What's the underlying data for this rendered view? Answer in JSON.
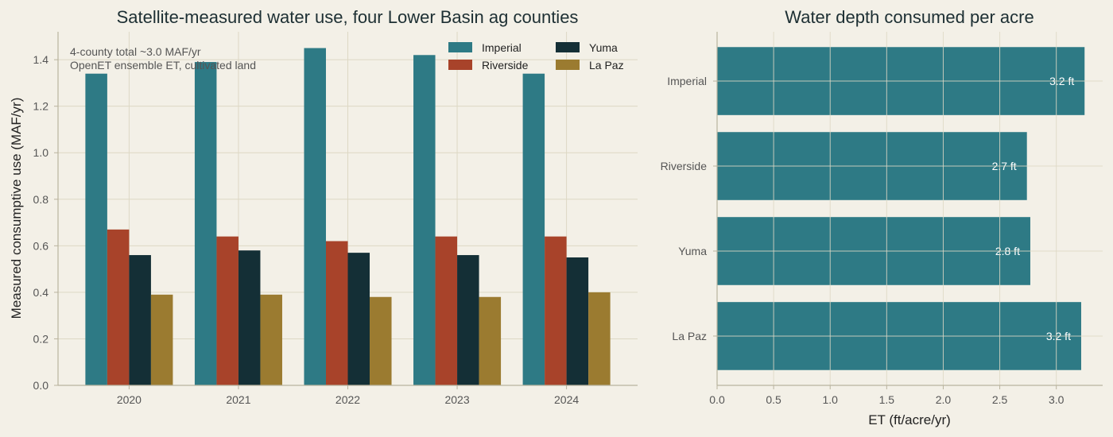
{
  "colors": {
    "background": "#f3f0e7",
    "grid": "#ddd8c4",
    "axis": "#b9b39e",
    "text": "#555555",
    "title": "#1d2f33",
    "Imperial": "#2e7a85",
    "Riverside": "#a8432a",
    "Yuma": "#142f36",
    "La Paz": "#9b7b30",
    "bar_label": "#ffffff"
  },
  "chart_data": [
    {
      "type": "bar",
      "title": "Satellite-measured water use, four Lower Basin ag counties",
      "xlabel": "",
      "ylabel": "Measured consumptive use (MAF/yr)",
      "categories": [
        "2020",
        "2021",
        "2022",
        "2023",
        "2024"
      ],
      "series": [
        {
          "name": "Imperial",
          "values": [
            1.34,
            1.39,
            1.45,
            1.42,
            1.34
          ]
        },
        {
          "name": "Riverside",
          "values": [
            0.67,
            0.64,
            0.62,
            0.64,
            0.64
          ]
        },
        {
          "name": "Yuma",
          "values": [
            0.56,
            0.58,
            0.57,
            0.56,
            0.55
          ]
        },
        {
          "name": "La Paz",
          "values": [
            0.39,
            0.39,
            0.38,
            0.38,
            0.4
          ]
        }
      ],
      "ylim": [
        0,
        1.52
      ],
      "yticks": [
        "0.0",
        "0.2",
        "0.4",
        "0.6",
        "0.8",
        "1.0",
        "1.2",
        "1.4"
      ],
      "annotation": [
        "4-county total ~3.0 MAF/yr",
        "OpenET ensemble ET, cultivated land"
      ],
      "legend_placement": "top-right",
      "legend_columns": 2,
      "grid": true
    },
    {
      "type": "bar",
      "orientation": "horizontal",
      "title": "Water depth consumed per acre",
      "xlabel": "ET (ft/acre/yr)",
      "ylabel": "",
      "categories": [
        "Imperial",
        "Riverside",
        "Yuma",
        "La Paz"
      ],
      "values": [
        3.25,
        2.74,
        2.77,
        3.22
      ],
      "data_labels": [
        "3.2 ft",
        "2.7 ft",
        "2.8 ft",
        "3.2 ft"
      ],
      "xlim": [
        0,
        3.41
      ],
      "xticks": [
        "0.0",
        "0.5",
        "1.0",
        "1.5",
        "2.0",
        "2.5",
        "3.0"
      ],
      "grid": true
    }
  ]
}
